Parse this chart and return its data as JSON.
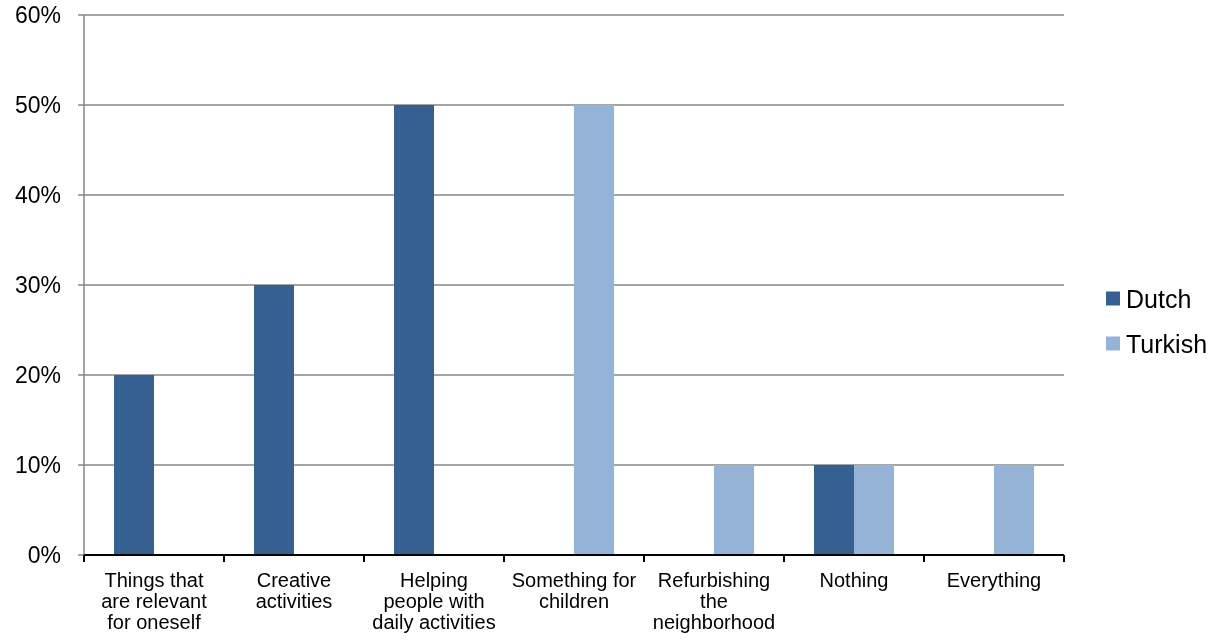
{
  "chart_data": {
    "type": "bar",
    "categories": [
      "Things that are relevant for oneself",
      "Creative activities",
      "Helping people with daily activities",
      "Something for children",
      "Refurbishing the neighborhood",
      "Nothing",
      "Everything"
    ],
    "series": [
      {
        "name": "Dutch",
        "color": "#376092",
        "values": [
          20,
          30,
          50,
          null,
          null,
          10,
          null
        ]
      },
      {
        "name": "Turkish",
        "color": "#95b3d7",
        "values": [
          null,
          null,
          null,
          50,
          10,
          10,
          10
        ]
      }
    ],
    "ylim": [
      0,
      60
    ],
    "yticks": [
      {
        "value": 0,
        "label": "0%"
      },
      {
        "value": 10,
        "label": "10%"
      },
      {
        "value": 20,
        "label": "20%"
      },
      {
        "value": 30,
        "label": "30%"
      },
      {
        "value": 40,
        "label": "40%"
      },
      {
        "value": 50,
        "label": "50%"
      },
      {
        "value": 60,
        "label": "60%"
      }
    ],
    "grid": "y",
    "legend": "right"
  }
}
